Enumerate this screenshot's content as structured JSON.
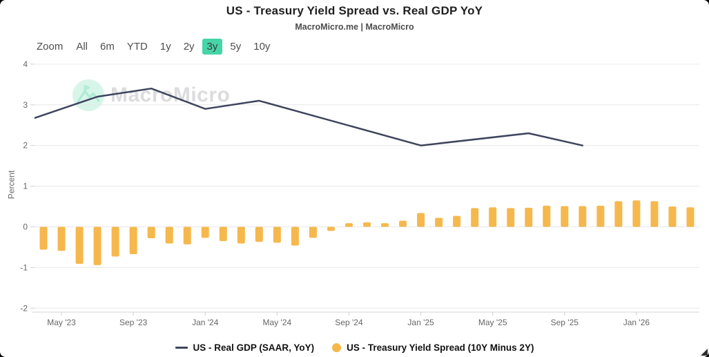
{
  "header": {
    "title": "US - Treasury Yield Spread vs. Real GDP YoY",
    "subtitle": "MacroMicro.me | MacroMicro"
  },
  "toolbar": {
    "zoom_label": "Zoom",
    "ranges": [
      "All",
      "6m",
      "YTD",
      "1y",
      "2y",
      "3y",
      "5y",
      "10y"
    ],
    "active_range": "3y"
  },
  "watermark": {
    "text": "MacroMicro",
    "logo": "macromicro-mountain-logo"
  },
  "y_axis": {
    "title": "Percent",
    "ticks": [
      4,
      3,
      2,
      1,
      0,
      -1,
      -2
    ]
  },
  "x_axis": {
    "tick_labels": [
      "May '23",
      "Sep '23",
      "Jan '24",
      "May '24",
      "Sep '24",
      "Jan '25",
      "May '25",
      "Sep '25",
      "Jan '26"
    ]
  },
  "chart_data": {
    "type": "mixed",
    "title": "US - Treasury Yield Spread vs. Real GDP YoY",
    "subtitle": "MacroMicro.me | MacroMicro",
    "ylabel": "Percent",
    "ylim": [
      -2,
      4
    ],
    "grid": true,
    "legend_position": "bottom",
    "months": [
      "Apr '23",
      "May '23",
      "Jun '23",
      "Jul '23",
      "Aug '23",
      "Sep '23",
      "Oct '23",
      "Nov '23",
      "Dec '23",
      "Jan '24",
      "Feb '24",
      "Mar '24",
      "Apr '24",
      "May '24",
      "Jun '24",
      "Jul '24",
      "Aug '24",
      "Sep '24",
      "Oct '24",
      "Nov '24",
      "Dec '24",
      "Jan '25",
      "Feb '25",
      "Mar '25",
      "Apr '25",
      "May '25",
      "Jun '25",
      "Jul '25",
      "Aug '25",
      "Sep '25",
      "Oct '25",
      "Nov '25",
      "Dec '25",
      "Jan '26",
      "Feb '26",
      "Mar '26",
      "Apr '26"
    ],
    "series": [
      {
        "name": "US - Real GDP (SAAR, YoY)",
        "type": "line",
        "color": "#3e445c",
        "points": [
          {
            "month": "Mar '23",
            "value": 2.6
          },
          {
            "month": "Jul '23",
            "value": 3.2
          },
          {
            "month": "Oct '23",
            "value": 3.4
          },
          {
            "month": "Jan '24",
            "value": 2.9
          },
          {
            "month": "Apr '24",
            "value": 3.1
          },
          {
            "month": "Jan '25",
            "value": 2.0
          },
          {
            "month": "Jul '25",
            "value": 2.3
          },
          {
            "month": "Oct '25",
            "value": 2.0
          }
        ]
      },
      {
        "name": "US - Treasury Yield Spread (10Y Minus 2Y)",
        "type": "bar",
        "color": "#f6b84c",
        "values": [
          -0.56,
          -0.59,
          -0.91,
          -0.94,
          -0.73,
          -0.67,
          -0.28,
          -0.41,
          -0.43,
          -0.27,
          -0.35,
          -0.41,
          -0.37,
          -0.39,
          -0.46,
          -0.27,
          -0.1,
          0.09,
          0.11,
          0.09,
          0.15,
          0.34,
          0.22,
          0.27,
          0.46,
          0.48,
          0.46,
          0.47,
          0.52,
          0.51,
          0.51,
          0.52,
          0.63,
          0.65,
          0.63,
          0.5,
          0.48
        ]
      }
    ]
  },
  "legend": {
    "items": [
      {
        "label": "US - Real GDP (SAAR, YoY)",
        "marker": "line",
        "color": "#3e445c"
      },
      {
        "label": "US - Treasury Yield Spread (10Y Minus 2Y)",
        "marker": "circle",
        "color": "#f6b84c"
      }
    ]
  },
  "colors": {
    "accent_mint": "#45d5a6",
    "grid_line": "#e7e7e7",
    "axis_line": "#d4d4d4",
    "tick_mark": "#cfcfcf",
    "axis_label": "#666666",
    "watermark_text": "#dcdcde",
    "watermark_logo_bg": "#d8f5e9",
    "watermark_logo_glyph": "#aeead6",
    "resize_grip": "#2e2e2e"
  }
}
